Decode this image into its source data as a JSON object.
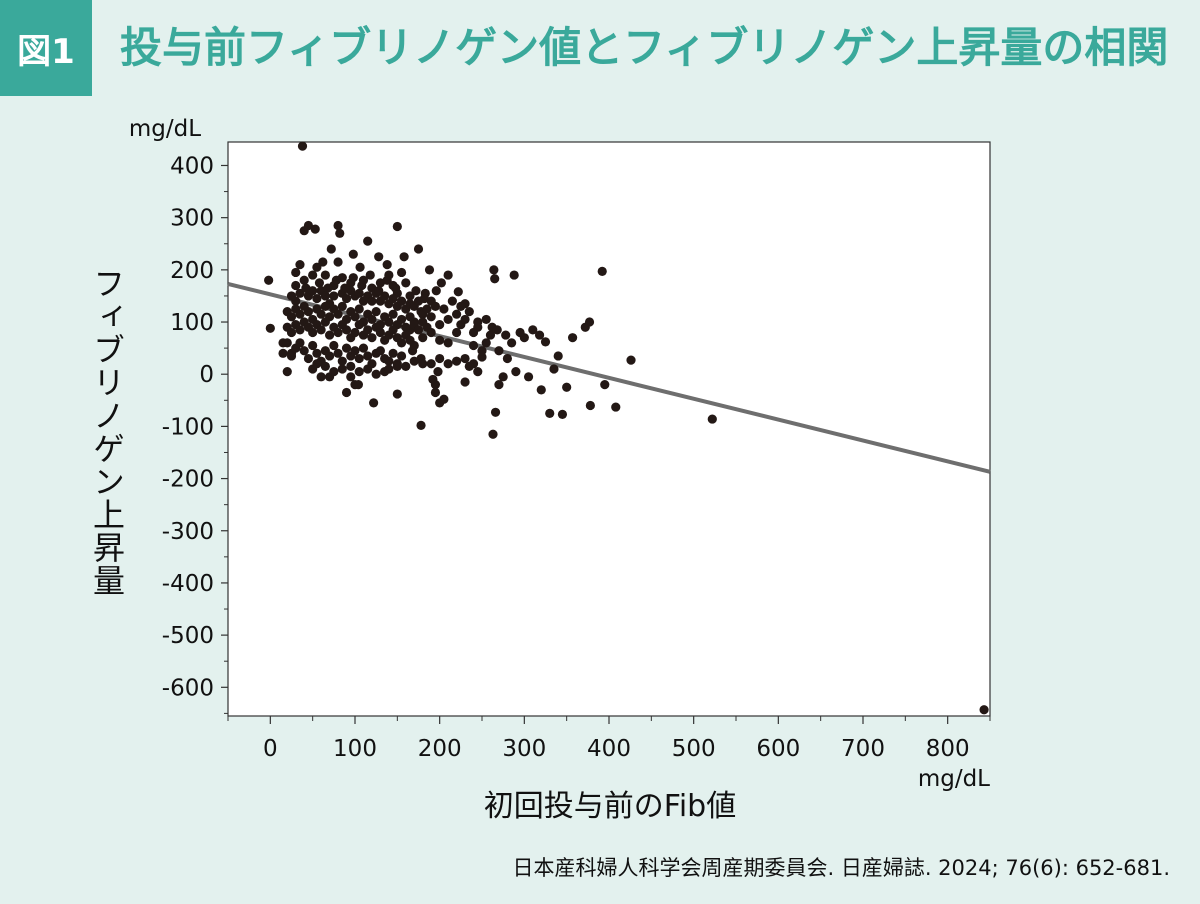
{
  "header": {
    "fig_label": "図1",
    "title": "投与前フィブリノゲン値とフィブリノゲン上昇量の相関"
  },
  "source": "日本産科婦人科学会周産期委員会.  日産婦誌.  2024; 76(6): 652-681.",
  "colors": {
    "background": "#e3f1ee",
    "accent": "#3aa99b",
    "points": "#231815",
    "trendline": "#6e6e6e",
    "plot_area": "#ffffff"
  },
  "chart_data": {
    "type": "scatter",
    "xlabel": "初回投与前のFib値",
    "xunit": "mg/dL",
    "ylabel": "フィブリノゲン上昇量",
    "yunit": "mg/dL",
    "xlim": [
      -50,
      850
    ],
    "ylim": [
      -655,
      445
    ],
    "xticks": [
      0,
      100,
      200,
      300,
      400,
      500,
      600,
      700,
      800
    ],
    "yticks": [
      400,
      300,
      200,
      100,
      0,
      -100,
      -200,
      -300,
      -400,
      -500,
      -600
    ],
    "grid": false,
    "trendline": {
      "x": [
        -50,
        850
      ],
      "y": [
        173,
        -187
      ]
    },
    "points": [
      [
        38,
        437
      ],
      [
        843,
        -643
      ],
      [
        522,
        -86
      ],
      [
        392,
        197
      ],
      [
        426,
        27
      ],
      [
        264,
        200
      ],
      [
        288,
        190
      ],
      [
        265,
        183
      ],
      [
        250,
        33
      ],
      [
        263,
        -115
      ],
      [
        266,
        -73
      ],
      [
        275,
        -5
      ],
      [
        270,
        -20
      ],
      [
        305,
        -5
      ],
      [
        320,
        -30
      ],
      [
        330,
        -75
      ],
      [
        345,
        -77
      ],
      [
        350,
        -25
      ],
      [
        378,
        -60
      ],
      [
        408,
        -63
      ],
      [
        395,
        -20
      ],
      [
        335,
        10
      ],
      [
        290,
        5
      ],
      [
        310,
        85
      ],
      [
        318,
        75
      ],
      [
        325,
        62
      ],
      [
        340,
        35
      ],
      [
        357,
        70
      ],
      [
        372,
        90
      ],
      [
        377,
        100
      ],
      [
        300,
        70
      ],
      [
        295,
        80
      ],
      [
        285,
        60
      ],
      [
        270,
        45
      ],
      [
        280,
        30
      ],
      [
        260,
        75
      ],
      [
        262,
        90
      ],
      [
        255,
        60
      ],
      [
        240,
        80
      ],
      [
        245,
        100
      ],
      [
        235,
        120
      ],
      [
        230,
        135
      ],
      [
        222,
        158
      ],
      [
        210,
        190
      ],
      [
        196,
        160
      ],
      [
        202,
        175
      ],
      [
        190,
        140
      ],
      [
        183,
        155
      ],
      [
        175,
        240
      ],
      [
        188,
        200
      ],
      [
        178,
        120
      ],
      [
        170,
        100
      ],
      [
        165,
        85
      ],
      [
        168,
        45
      ],
      [
        178,
        30
      ],
      [
        190,
        20
      ],
      [
        198,
        5
      ],
      [
        192,
        -10
      ],
      [
        195,
        -35
      ],
      [
        200,
        -55
      ],
      [
        205,
        -48
      ],
      [
        178,
        -98
      ],
      [
        150,
        -38
      ],
      [
        122,
        -55
      ],
      [
        90,
        -35
      ],
      [
        100,
        -20
      ],
      [
        104,
        -20
      ],
      [
        95,
        -5
      ],
      [
        70,
        -5
      ],
      [
        60,
        -5
      ],
      [
        20,
        5
      ],
      [
        25,
        40
      ],
      [
        15,
        60
      ],
      [
        0,
        88
      ],
      [
        -2,
        180
      ],
      [
        40,
        275
      ],
      [
        45,
        285
      ],
      [
        53,
        278
      ],
      [
        80,
        285
      ],
      [
        82,
        270
      ],
      [
        115,
        255
      ],
      [
        150,
        283
      ],
      [
        128,
        225
      ],
      [
        138,
        210
      ],
      [
        158,
        225
      ],
      [
        106,
        205
      ],
      [
        98,
        230
      ],
      [
        72,
        240
      ],
      [
        80,
        215
      ],
      [
        62,
        215
      ],
      [
        55,
        205
      ],
      [
        35,
        210
      ],
      [
        30,
        195
      ],
      [
        40,
        180
      ],
      [
        50,
        190
      ],
      [
        65,
        190
      ],
      [
        75,
        170
      ],
      [
        85,
        185
      ],
      [
        95,
        175
      ],
      [
        110,
        180
      ],
      [
        120,
        165
      ],
      [
        130,
        175
      ],
      [
        140,
        190
      ],
      [
        145,
        170
      ],
      [
        150,
        155
      ],
      [
        160,
        175
      ],
      [
        25,
        150
      ],
      [
        30,
        140
      ],
      [
        35,
        155
      ],
      [
        45,
        150
      ],
      [
        50,
        160
      ],
      [
        55,
        145
      ],
      [
        60,
        160
      ],
      [
        65,
        150
      ],
      [
        70,
        135
      ],
      [
        75,
        150
      ],
      [
        85,
        155
      ],
      [
        90,
        145
      ],
      [
        95,
        160
      ],
      [
        100,
        150
      ],
      [
        105,
        155
      ],
      [
        110,
        140
      ],
      [
        115,
        150
      ],
      [
        120,
        140
      ],
      [
        125,
        155
      ],
      [
        130,
        140
      ],
      [
        135,
        150
      ],
      [
        140,
        135
      ],
      [
        145,
        145
      ],
      [
        150,
        130
      ],
      [
        155,
        140
      ],
      [
        160,
        125
      ],
      [
        165,
        135
      ],
      [
        170,
        130
      ],
      [
        175,
        140
      ],
      [
        180,
        115
      ],
      [
        185,
        125
      ],
      [
        20,
        120
      ],
      [
        25,
        110
      ],
      [
        30,
        125
      ],
      [
        35,
        115
      ],
      [
        40,
        130
      ],
      [
        45,
        120
      ],
      [
        50,
        105
      ],
      [
        55,
        125
      ],
      [
        60,
        115
      ],
      [
        65,
        130
      ],
      [
        70,
        110
      ],
      [
        75,
        125
      ],
      [
        80,
        115
      ],
      [
        85,
        130
      ],
      [
        90,
        105
      ],
      [
        95,
        120
      ],
      [
        100,
        110
      ],
      [
        105,
        125
      ],
      [
        110,
        100
      ],
      [
        115,
        115
      ],
      [
        120,
        105
      ],
      [
        125,
        120
      ],
      [
        130,
        95
      ],
      [
        135,
        110
      ],
      [
        140,
        100
      ],
      [
        145,
        115
      ],
      [
        150,
        95
      ],
      [
        155,
        105
      ],
      [
        160,
        90
      ],
      [
        165,
        110
      ],
      [
        170,
        95
      ],
      [
        175,
        85
      ],
      [
        180,
        100
      ],
      [
        185,
        90
      ],
      [
        190,
        110
      ],
      [
        200,
        95
      ],
      [
        210,
        105
      ],
      [
        220,
        115
      ],
      [
        225,
        95
      ],
      [
        230,
        105
      ],
      [
        20,
        90
      ],
      [
        25,
        80
      ],
      [
        30,
        95
      ],
      [
        35,
        85
      ],
      [
        40,
        100
      ],
      [
        45,
        90
      ],
      [
        50,
        80
      ],
      [
        55,
        95
      ],
      [
        60,
        85
      ],
      [
        65,
        100
      ],
      [
        70,
        75
      ],
      [
        75,
        90
      ],
      [
        80,
        80
      ],
      [
        85,
        95
      ],
      [
        90,
        85
      ],
      [
        95,
        70
      ],
      [
        100,
        80
      ],
      [
        105,
        95
      ],
      [
        110,
        75
      ],
      [
        115,
        85
      ],
      [
        120,
        70
      ],
      [
        125,
        90
      ],
      [
        130,
        80
      ],
      [
        135,
        65
      ],
      [
        140,
        75
      ],
      [
        145,
        85
      ],
      [
        150,
        70
      ],
      [
        155,
        60
      ],
      [
        160,
        75
      ],
      [
        165,
        65
      ],
      [
        170,
        55
      ],
      [
        180,
        70
      ],
      [
        190,
        80
      ],
      [
        200,
        65
      ],
      [
        210,
        60
      ],
      [
        220,
        80
      ],
      [
        240,
        55
      ],
      [
        250,
        45
      ],
      [
        15,
        40
      ],
      [
        20,
        60
      ],
      [
        25,
        35
      ],
      [
        30,
        50
      ],
      [
        35,
        60
      ],
      [
        40,
        45
      ],
      [
        45,
        30
      ],
      [
        50,
        55
      ],
      [
        55,
        40
      ],
      [
        60,
        25
      ],
      [
        65,
        45
      ],
      [
        70,
        35
      ],
      [
        75,
        55
      ],
      [
        80,
        40
      ],
      [
        85,
        25
      ],
      [
        90,
        50
      ],
      [
        95,
        35
      ],
      [
        100,
        45
      ],
      [
        105,
        30
      ],
      [
        110,
        50
      ],
      [
        115,
        35
      ],
      [
        120,
        20
      ],
      [
        125,
        40
      ],
      [
        130,
        45
      ],
      [
        135,
        30
      ],
      [
        140,
        25
      ],
      [
        145,
        40
      ],
      [
        150,
        20
      ],
      [
        155,
        35
      ],
      [
        160,
        15
      ],
      [
        170,
        25
      ],
      [
        180,
        20
      ],
      [
        200,
        30
      ],
      [
        210,
        20
      ],
      [
        220,
        25
      ],
      [
        230,
        30
      ],
      [
        235,
        15
      ],
      [
        240,
        20
      ],
      [
        245,
        5
      ],
      [
        230,
        -15
      ],
      [
        195,
        -20
      ],
      [
        50,
        10
      ],
      [
        55,
        20
      ],
      [
        65,
        15
      ],
      [
        75,
        5
      ],
      [
        85,
        10
      ],
      [
        95,
        15
      ],
      [
        105,
        5
      ],
      [
        115,
        10
      ],
      [
        125,
        0
      ],
      [
        135,
        5
      ],
      [
        140,
        10
      ],
      [
        150,
        15
      ],
      [
        30,
        170
      ],
      [
        42,
        165
      ],
      [
        58,
        175
      ],
      [
        68,
        165
      ],
      [
        78,
        180
      ],
      [
        88,
        165
      ],
      [
        98,
        185
      ],
      [
        108,
        170
      ],
      [
        118,
        190
      ],
      [
        128,
        160
      ],
      [
        138,
        180
      ],
      [
        148,
        165
      ],
      [
        155,
        195
      ],
      [
        165,
        150
      ],
      [
        172,
        160
      ],
      [
        182,
        145
      ],
      [
        195,
        130
      ],
      [
        205,
        125
      ],
      [
        215,
        140
      ],
      [
        225,
        130
      ],
      [
        245,
        90
      ],
      [
        255,
        105
      ],
      [
        268,
        85
      ],
      [
        278,
        75
      ]
    ]
  }
}
